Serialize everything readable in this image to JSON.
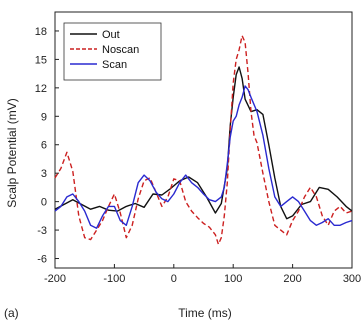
{
  "panel_label": "(a)",
  "chart_data": {
    "type": "line",
    "xlabel": "Time (ms)",
    "ylabel": "Scalp Potential (mV)",
    "xlim": [
      -200,
      300
    ],
    "ylim": [
      -7,
      20
    ],
    "xticks": [
      -200,
      -100,
      0,
      100,
      200,
      300
    ],
    "yticks": [
      -6,
      -3,
      0,
      3,
      6,
      9,
      12,
      15,
      18
    ],
    "legend_position": "top-left",
    "series": [
      {
        "name": "Out",
        "color": "#111111",
        "dash": "solid",
        "x": [
          -200,
          -185,
          -170,
          -155,
          -140,
          -125,
          -110,
          -95,
          -80,
          -65,
          -50,
          -35,
          -20,
          -5,
          10,
          25,
          40,
          55,
          70,
          80,
          90,
          95,
          100,
          105,
          110,
          115,
          120,
          130,
          140,
          150,
          160,
          170,
          180,
          190,
          200,
          215,
          230,
          245,
          260,
          275,
          290,
          300
        ],
        "y": [
          -0.8,
          -0.3,
          0.2,
          -0.3,
          -0.8,
          -0.5,
          -0.9,
          -1.0,
          -0.5,
          -0.2,
          -0.6,
          0.8,
          0.7,
          1.4,
          2.2,
          2.6,
          2.0,
          0.5,
          -1.2,
          -0.2,
          3.5,
          8.0,
          11.0,
          13.4,
          14.2,
          13.0,
          10.8,
          9.5,
          9.7,
          9.2,
          6.0,
          2.5,
          -0.5,
          -1.8,
          -1.5,
          -0.3,
          0.0,
          1.5,
          1.3,
          0.5,
          -0.5,
          -1.0
        ]
      },
      {
        "name": "Noscan",
        "color": "#cc2020",
        "dash": "dashed",
        "x": [
          -200,
          -190,
          -180,
          -170,
          -160,
          -150,
          -140,
          -130,
          -120,
          -110,
          -100,
          -90,
          -80,
          -70,
          -60,
          -50,
          -40,
          -30,
          -20,
          -10,
          0,
          10,
          20,
          30,
          40,
          50,
          60,
          70,
          75,
          80,
          85,
          90,
          95,
          100,
          105,
          110,
          115,
          120,
          125,
          130,
          135,
          140,
          150,
          160,
          170,
          180,
          190,
          200,
          210,
          220,
          230,
          240,
          250,
          260,
          270,
          280,
          290,
          300
        ],
        "y": [
          2.5,
          3.5,
          5.2,
          3.2,
          -1.5,
          -3.8,
          -4.0,
          -3.0,
          -2.0,
          -0.5,
          0.8,
          -1.2,
          -3.8,
          -2.5,
          0.3,
          2.2,
          2.5,
          1.0,
          -0.5,
          0.5,
          2.4,
          2.2,
          0.0,
          -1.0,
          -1.7,
          -2.3,
          -2.7,
          -3.5,
          -4.5,
          -3.8,
          -1.5,
          2.0,
          7.5,
          12.5,
          15.0,
          16.0,
          17.5,
          16.8,
          13.5,
          9.5,
          7.0,
          6.2,
          3.0,
          0.0,
          -2.5,
          -3.0,
          -3.5,
          -2.0,
          -1.0,
          0.5,
          1.5,
          0.5,
          -1.5,
          -2.5,
          -1.0,
          -0.5,
          -1.2,
          -1.0
        ]
      },
      {
        "name": "Scan",
        "color": "#2a2ad0",
        "dash": "solid",
        "x": [
          -200,
          -190,
          -180,
          -170,
          -160,
          -150,
          -140,
          -130,
          -120,
          -110,
          -100,
          -90,
          -80,
          -70,
          -60,
          -50,
          -40,
          -30,
          -20,
          -10,
          0,
          10,
          20,
          30,
          40,
          50,
          60,
          70,
          80,
          85,
          90,
          95,
          100,
          105,
          110,
          115,
          120,
          125,
          130,
          140,
          150,
          160,
          170,
          180,
          190,
          200,
          210,
          220,
          230,
          240,
          250,
          260,
          270,
          280,
          290,
          300
        ],
        "y": [
          -1.0,
          -0.5,
          0.5,
          0.8,
          0.0,
          -1.0,
          -2.5,
          -2.8,
          -1.5,
          -0.5,
          -0.5,
          -2.0,
          -2.5,
          -0.5,
          2.0,
          2.8,
          2.2,
          1.0,
          0.3,
          0.0,
          0.8,
          2.0,
          2.8,
          2.0,
          1.5,
          0.8,
          0.2,
          0.0,
          0.5,
          1.5,
          4.0,
          6.8,
          8.5,
          9.0,
          10.2,
          11.0,
          12.2,
          11.8,
          11.0,
          9.5,
          7.0,
          3.5,
          0.5,
          -0.5,
          0.0,
          0.5,
          0.0,
          -1.0,
          -2.0,
          -2.5,
          -2.2,
          -1.8,
          -2.5,
          -2.5,
          -2.2,
          -2.0
        ]
      }
    ]
  }
}
